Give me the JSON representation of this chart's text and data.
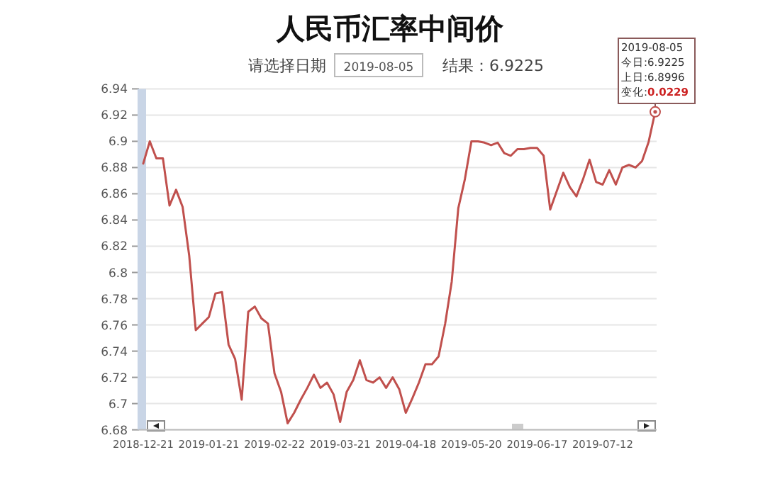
{
  "chart_data": {
    "type": "line",
    "title": "人民币汇率中间价",
    "annotations": [
      "请选择日期",
      "2019-08-05",
      "结果：6.9225",
      "2019-08-05",
      "今日:6.9225",
      "上日:6.8996",
      "变化:0.0229"
    ],
    "categories": [
      "2018-12-21",
      null,
      null,
      null,
      null,
      null,
      null,
      null,
      null,
      null,
      "2019-01-21",
      null,
      null,
      null,
      null,
      null,
      null,
      null,
      null,
      null,
      "2019-02-22",
      null,
      null,
      null,
      null,
      null,
      null,
      null,
      null,
      null,
      "2019-03-21",
      null,
      null,
      null,
      null,
      null,
      null,
      null,
      null,
      null,
      "2019-04-18",
      null,
      null,
      null,
      null,
      null,
      null,
      null,
      null,
      null,
      "2019-05-20",
      null,
      null,
      null,
      null,
      null,
      null,
      null,
      null,
      null,
      "2019-06-17",
      null,
      null,
      null,
      null,
      null,
      null,
      null,
      null,
      null,
      "2019-07-12",
      null,
      null,
      null,
      null,
      null,
      null,
      null,
      null
    ],
    "series": [
      {
        "color": "#c0504d",
        "values": [
          6.883,
          6.9,
          6.887,
          6.887,
          6.851,
          6.863,
          6.85,
          6.813,
          6.756,
          6.761,
          6.766,
          6.784,
          6.785,
          6.745,
          6.734,
          6.703,
          6.77,
          6.774,
          6.765,
          6.761,
          6.723,
          6.709,
          6.685,
          6.693,
          6.703,
          6.712,
          6.722,
          6.712,
          6.716,
          6.707,
          6.686,
          6.709,
          6.718,
          6.733,
          6.718,
          6.716,
          6.72,
          6.712,
          6.72,
          6.711,
          6.693,
          6.704,
          6.716,
          6.73,
          6.73,
          6.736,
          6.761,
          6.793,
          6.849,
          6.871,
          6.9,
          6.9,
          6.899,
          6.897,
          6.899,
          6.891,
          6.889,
          6.894,
          6.894,
          6.895,
          6.895,
          6.889,
          6.848,
          6.862,
          6.876,
          6.865,
          6.858,
          6.871,
          6.886,
          6.869,
          6.867,
          6.878,
          6.867,
          6.88,
          6.882,
          6.88,
          6.885,
          6.8996,
          6.9225
        ]
      }
    ],
    "ylim": [
      6.68,
      6.94
    ],
    "yticks": [
      6.68,
      6.7,
      6.72,
      6.74,
      6.76,
      6.78,
      6.8,
      6.82,
      6.84,
      6.86,
      6.88,
      6.9,
      6.92,
      6.94
    ],
    "grid": "y"
  }
}
